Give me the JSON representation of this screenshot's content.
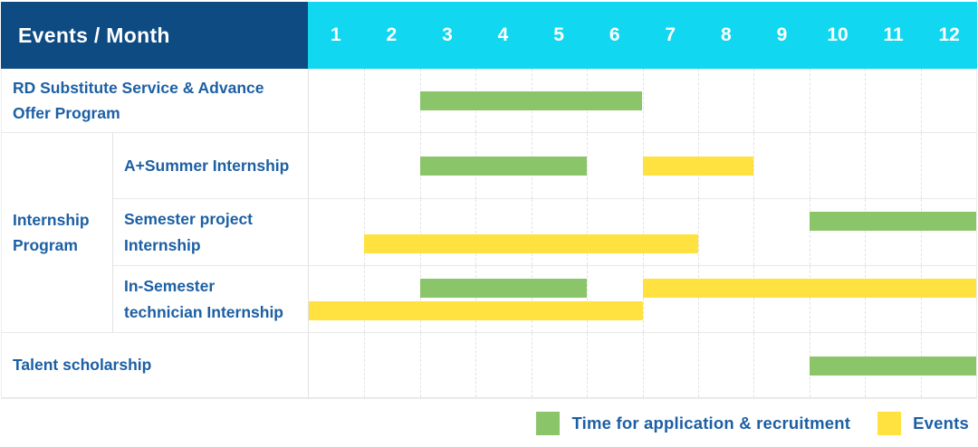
{
  "header": {
    "title": "Events / Month"
  },
  "months": [
    "1",
    "2",
    "3",
    "4",
    "5",
    "6",
    "7",
    "8",
    "9",
    "10",
    "11",
    "12"
  ],
  "colors": {
    "navy": "#0d4b82",
    "cyan": "#12d7f0",
    "green": "#8bc56a",
    "yellow": "#ffe23f",
    "label_text": "#1c5fa4"
  },
  "legend": [
    {
      "key": "application",
      "label": "Time for application & recruitment",
      "color": "#8bc56a"
    },
    {
      "key": "event",
      "label": "Events",
      "color": "#ffe23f"
    }
  ],
  "chart_data": {
    "type": "gantt",
    "title": "Events / Month",
    "x_unit": "month",
    "x_range": [
      1,
      12
    ],
    "x_ticks": [
      "1",
      "2",
      "3",
      "4",
      "5",
      "6",
      "7",
      "8",
      "9",
      "10",
      "11",
      "12"
    ],
    "legend_position": "bottom-right",
    "series_types": {
      "application": "Time for application & recruitment",
      "event": "Events"
    },
    "rows": [
      {
        "group": null,
        "label": "RD Substitute Service & Advance Offer Program",
        "bars": [
          {
            "type": "application",
            "start": 3,
            "end": 6,
            "line": 0
          }
        ]
      },
      {
        "group": "Internship Program",
        "label": "A+Summer Internship",
        "bars": [
          {
            "type": "application",
            "start": 3,
            "end": 5,
            "line": 0
          },
          {
            "type": "event",
            "start": 7,
            "end": 8,
            "line": 0
          }
        ]
      },
      {
        "group": "Internship Program",
        "label": "Semester project Internship",
        "bars": [
          {
            "type": "application",
            "start": 10,
            "end": 12,
            "line": 0
          },
          {
            "type": "event",
            "start": 2,
            "end": 7,
            "line": 1
          }
        ]
      },
      {
        "group": "Internship Program",
        "label": "In-Semester technician Internship",
        "bars": [
          {
            "type": "application",
            "start": 3,
            "end": 5,
            "line": 0
          },
          {
            "type": "event",
            "start": 7,
            "end": 12,
            "line": 0
          },
          {
            "type": "event",
            "start": 1,
            "end": 6,
            "line": 1
          }
        ]
      },
      {
        "group": null,
        "label": "Talent scholarship",
        "bars": [
          {
            "type": "application",
            "start": 10,
            "end": 12,
            "line": 0
          }
        ]
      }
    ]
  }
}
